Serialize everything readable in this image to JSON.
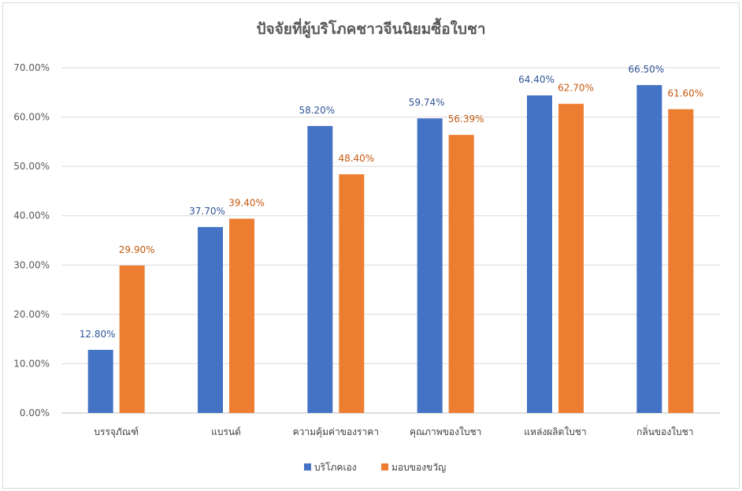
{
  "chart_data": {
    "type": "bar",
    "title": "ปัจจัยที่ผู้บริโภคชาวจีนนิยมซื้อใบชา",
    "xlabel": "",
    "ylabel": "",
    "ylim": [
      0,
      70
    ],
    "y_ticks": [
      "0.00%",
      "10.00%",
      "20.00%",
      "30.00%",
      "40.00%",
      "50.00%",
      "60.00%",
      "70.00%"
    ],
    "grid": true,
    "legend_position": "bottom",
    "categories": [
      "บรรจุภัณฑ์",
      "แบรนด์",
      "ความคุ้มค่าของราคา",
      "คุณภาพของใบชา",
      "แหล่งผลิตใบชา",
      "กลิ่นของใบชา"
    ],
    "series": [
      {
        "name": "บริโภคเอง",
        "color": "#4472C4",
        "values": [
          12.8,
          37.7,
          58.2,
          59.74,
          64.4,
          66.5
        ],
        "labels": [
          "12.80%",
          "37.70%",
          "58.20%",
          "59.74%",
          "64.40%",
          "66.50%"
        ]
      },
      {
        "name": "มอบของขวัญ",
        "color": "#ED7D31",
        "values": [
          29.9,
          39.4,
          48.4,
          56.39,
          62.7,
          61.6
        ],
        "labels": [
          "29.90%",
          "39.40%",
          "48.40%",
          "56.39%",
          "62.70%",
          "61.60%"
        ]
      }
    ]
  }
}
